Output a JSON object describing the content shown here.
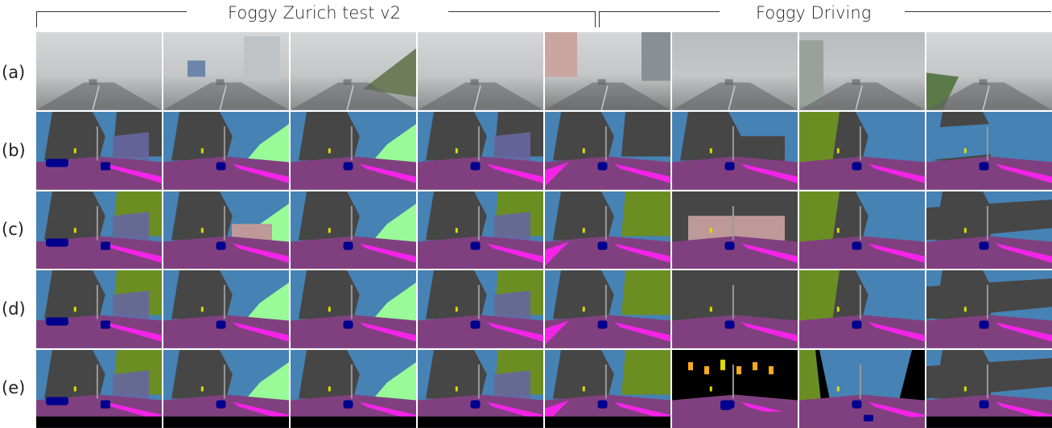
{
  "groups": [
    {
      "title": "Foggy Zurich test v2"
    },
    {
      "title": "Foggy Driving"
    }
  ],
  "rows": [
    {
      "label": "(a)",
      "kind": "photo"
    },
    {
      "label": "(b)",
      "kind": "seg"
    },
    {
      "label": "(c)",
      "kind": "seg"
    },
    {
      "label": "(d)",
      "kind": "seg"
    },
    {
      "label": "(e)",
      "kind": "seg"
    }
  ],
  "colors": {
    "sky": "#4682b4",
    "building": "#464646",
    "road": "#80407f",
    "sidewalk": "#f423e8",
    "vegetation": "#6b8e23",
    "terrain": "#98fb98",
    "wall": "#6666a0",
    "fence": "#be9999",
    "car": "#00008e",
    "pole": "#999999",
    "traffic_light": "#faaa1e",
    "traffic_sign": "#dcdc00",
    "void": "#000000",
    "fog": "#c8c9c9"
  }
}
